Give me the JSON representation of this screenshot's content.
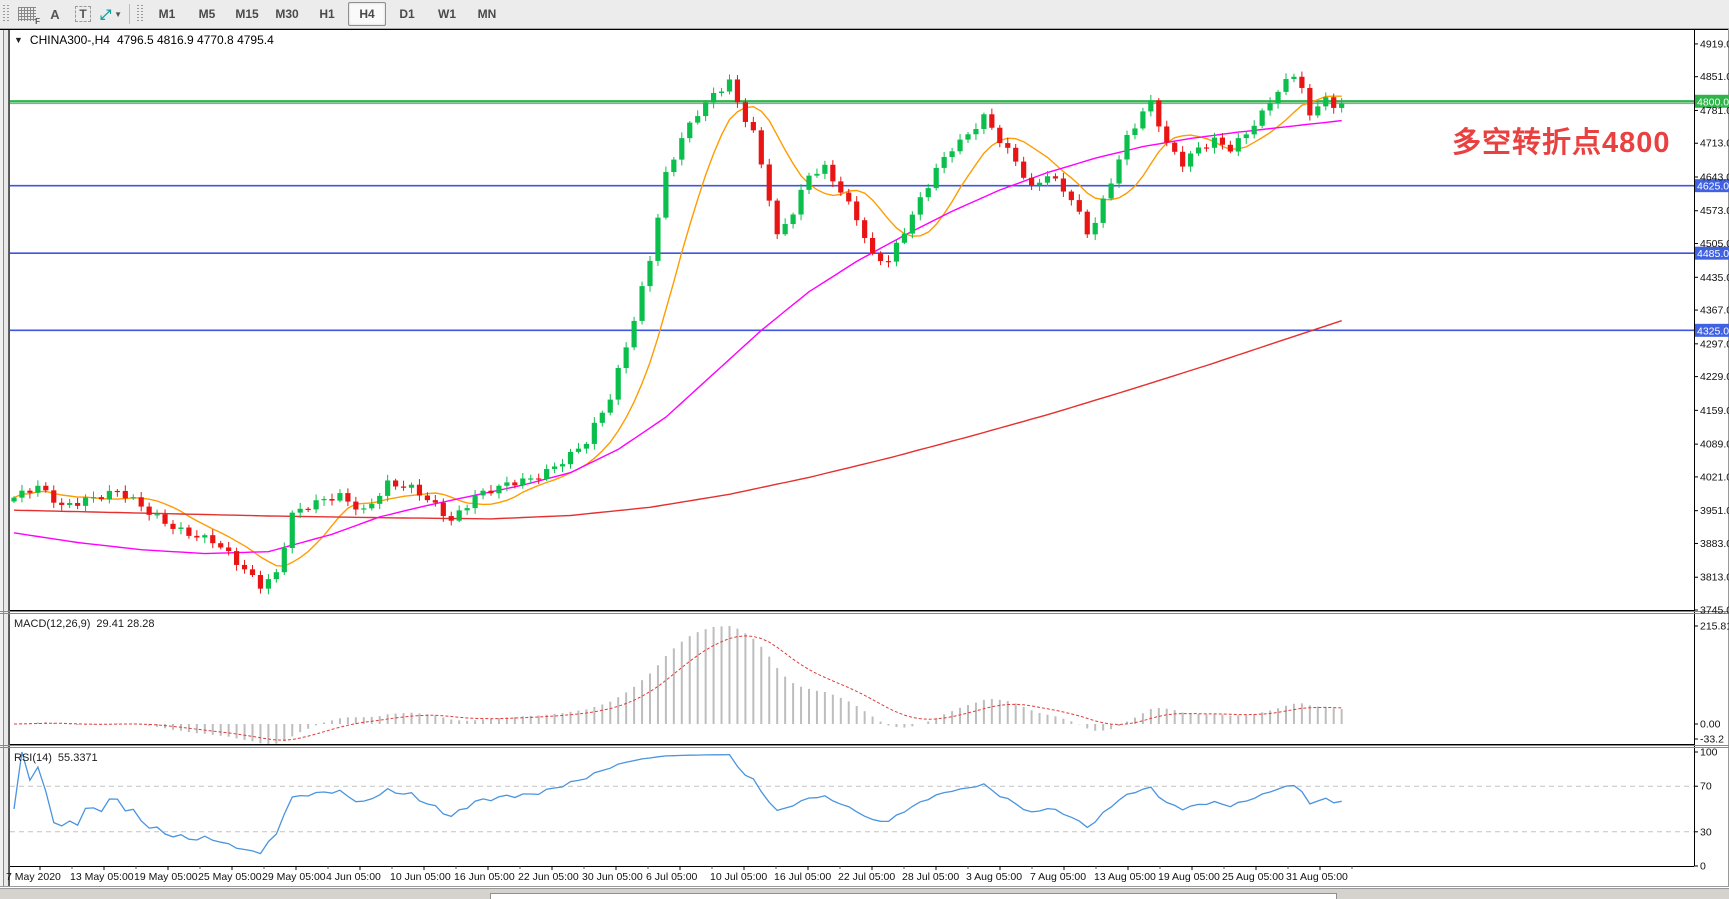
{
  "toolbar": {
    "tools": [
      {
        "name": "indicator-grid",
        "glyph": "grid",
        "sub": "F"
      },
      {
        "name": "text-label",
        "glyph": "A"
      },
      {
        "name": "text-box",
        "glyph": "T"
      },
      {
        "name": "cursor-mode",
        "glyph": "⤢",
        "caret": "▼"
      }
    ],
    "timeframes": [
      "M1",
      "M5",
      "M15",
      "M30",
      "H1",
      "H4",
      "D1",
      "W1",
      "MN"
    ],
    "active_timeframe": "H4"
  },
  "chart": {
    "collapse_glyph": "▼",
    "title": "CHINA300-,H4",
    "ohlc": "4796.5 4816.9 4770.8 4795.4"
  },
  "annotation": {
    "text": "多空转折点4800",
    "color": "#e94040"
  },
  "price_axis": {
    "ticks": [
      4919.0,
      4851.0,
      4781.0,
      4713.0,
      4643.0,
      4573.0,
      4505.0,
      4435.0,
      4367.0,
      4297.0,
      4229.0,
      4159.0,
      4089.0,
      4021.0,
      3951.0,
      3883.0,
      3813.0,
      3745.0
    ]
  },
  "hlines": [
    {
      "price": 4800.0,
      "color": "#2fb44a",
      "width": 2.4,
      "chip": "#2fb44a"
    },
    {
      "price": 4625.0,
      "color": "#3f55e0",
      "width": 1.6,
      "chip": "#4162e0"
    },
    {
      "price": 4485.0,
      "color": "#3f55e0",
      "width": 1.6,
      "chip": "#4162e0"
    },
    {
      "price": 4325.0,
      "color": "#3f55e0",
      "width": 1.6,
      "chip": "#4162e0"
    }
  ],
  "price_line": {
    "value": 4795.4,
    "color": "#8fa0b4"
  },
  "macd": {
    "label": "MACD(12,26,9)",
    "values": "29.41 28.28",
    "axis": [
      "215.81",
      "0.00",
      "-33.2"
    ],
    "params": {
      "fast": 12,
      "slow": 26,
      "signal": 9
    },
    "hist_color": "#bdbdbd",
    "signal_color": "#e23b3b"
  },
  "rsi": {
    "label": "RSI(14)",
    "value": "55.3371",
    "period": 14,
    "levels": [
      100,
      70,
      30,
      0
    ],
    "dashed_levels": [
      70,
      30
    ],
    "line_color": "#4a94e0"
  },
  "time_axis": {
    "labels": [
      "7 May 2020",
      "13 May 05:00",
      "19 May 05:00",
      "25 May 05:00",
      "29 May 05:00",
      "4 Jun 05:00",
      "10 Jun 05:00",
      "16 Jun 05:00",
      "22 Jun 05:00",
      "30 Jun 05:00",
      "6 Jul 05:00",
      "10 Jul 05:00",
      "16 Jul 05:00",
      "22 Jul 05:00",
      "28 Jul 05:00",
      "3 Aug 05:00",
      "7 Aug 05:00",
      "13 Aug 05:00",
      "19 Aug 05:00",
      "25 Aug 05:00",
      "31 Aug 05:00"
    ]
  },
  "chart_data": {
    "type": "candlestick",
    "symbol": "CHINA300-",
    "timeframe": "H4",
    "current_ohlc": {
      "open": 4796.5,
      "high": 4816.9,
      "low": 4770.8,
      "close": 4795.4
    },
    "price_range": [
      3745.0,
      4919.0
    ],
    "bars": 168,
    "colors": {
      "bull": "#0abf4c",
      "bear": "#e91515"
    },
    "noise": [
      7,
      6
    ],
    "close_keyframes": [
      [
        0,
        3978
      ],
      [
        3,
        3995
      ],
      [
        6,
        3960
      ],
      [
        9,
        3980
      ],
      [
        13,
        3988
      ],
      [
        17,
        3945
      ],
      [
        21,
        3915
      ],
      [
        25,
        3885
      ],
      [
        28,
        3840
      ],
      [
        31,
        3800
      ],
      [
        33,
        3825
      ],
      [
        35,
        3945
      ],
      [
        38,
        3962
      ],
      [
        41,
        3980
      ],
      [
        44,
        3955
      ],
      [
        47,
        4008
      ],
      [
        50,
        3992
      ],
      [
        53,
        3960
      ],
      [
        55,
        3935
      ],
      [
        58,
        3985
      ],
      [
        61,
        3995
      ],
      [
        65,
        4015
      ],
      [
        68,
        4048
      ],
      [
        72,
        4092
      ],
      [
        75,
        4180
      ],
      [
        78,
        4350
      ],
      [
        80,
        4480
      ],
      [
        82,
        4650
      ],
      [
        84,
        4720
      ],
      [
        86,
        4770
      ],
      [
        88,
        4810
      ],
      [
        90,
        4845
      ],
      [
        91,
        4800
      ],
      [
        93,
        4740
      ],
      [
        95,
        4600
      ],
      [
        96,
        4515
      ],
      [
        98,
        4565
      ],
      [
        100,
        4645
      ],
      [
        102,
        4665
      ],
      [
        104,
        4620
      ],
      [
        106,
        4560
      ],
      [
        108,
        4475
      ],
      [
        110,
        4462
      ],
      [
        112,
        4530
      ],
      [
        114,
        4600
      ],
      [
        116,
        4665
      ],
      [
        118,
        4705
      ],
      [
        120,
        4725
      ],
      [
        122,
        4762
      ],
      [
        124,
        4718
      ],
      [
        126,
        4680
      ],
      [
        128,
        4625
      ],
      [
        130,
        4650
      ],
      [
        132,
        4612
      ],
      [
        133,
        4592
      ],
      [
        135,
        4525
      ],
      [
        136,
        4548
      ],
      [
        138,
        4640
      ],
      [
        140,
        4730
      ],
      [
        142,
        4778
      ],
      [
        143,
        4795
      ],
      [
        145,
        4705
      ],
      [
        147,
        4668
      ],
      [
        149,
        4705
      ],
      [
        151,
        4725
      ],
      [
        153,
        4705
      ],
      [
        155,
        4730
      ],
      [
        157,
        4768
      ],
      [
        159,
        4820
      ],
      [
        161,
        4858
      ],
      [
        162,
        4835
      ],
      [
        163,
        4770
      ],
      [
        164,
        4800
      ],
      [
        165,
        4812
      ],
      [
        166,
        4780
      ],
      [
        167,
        4795.4
      ]
    ],
    "moving_averages": [
      {
        "name": "MA-fast",
        "color": "#ff9c00",
        "type": "sma",
        "period": 9
      },
      {
        "name": "MA-mid",
        "color": "#ff00ff",
        "type": "keyframes",
        "points": [
          [
            0,
            3905
          ],
          [
            8,
            3885
          ],
          [
            16,
            3870
          ],
          [
            24,
            3862
          ],
          [
            32,
            3866
          ],
          [
            40,
            3902
          ],
          [
            46,
            3938
          ],
          [
            52,
            3962
          ],
          [
            58,
            3983
          ],
          [
            64,
            4004
          ],
          [
            70,
            4030
          ],
          [
            76,
            4078
          ],
          [
            82,
            4145
          ],
          [
            88,
            4235
          ],
          [
            94,
            4325
          ],
          [
            100,
            4405
          ],
          [
            106,
            4468
          ],
          [
            112,
            4522
          ],
          [
            118,
            4572
          ],
          [
            124,
            4616
          ],
          [
            130,
            4652
          ],
          [
            136,
            4682
          ],
          [
            142,
            4706
          ],
          [
            148,
            4723
          ],
          [
            154,
            4736
          ],
          [
            160,
            4747
          ],
          [
            167,
            4760
          ]
        ]
      },
      {
        "name": "MA-slow",
        "color": "#e33030",
        "type": "keyframes",
        "points": [
          [
            0,
            3952
          ],
          [
            16,
            3946
          ],
          [
            32,
            3940
          ],
          [
            48,
            3936
          ],
          [
            60,
            3934
          ],
          [
            70,
            3941
          ],
          [
            80,
            3958
          ],
          [
            90,
            3985
          ],
          [
            100,
            4020
          ],
          [
            110,
            4060
          ],
          [
            120,
            4104
          ],
          [
            130,
            4150
          ],
          [
            140,
            4200
          ],
          [
            150,
            4252
          ],
          [
            158,
            4296
          ],
          [
            167,
            4345
          ]
        ]
      }
    ]
  }
}
